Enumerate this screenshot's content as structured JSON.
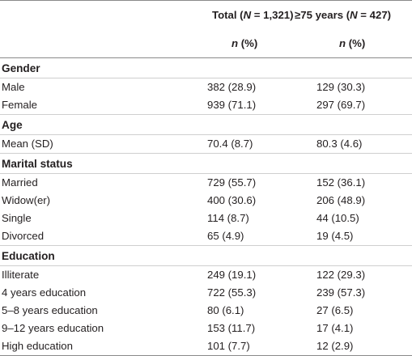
{
  "header": {
    "col1_prefix": "Total (",
    "col1_n": "N",
    "col1_suffix": " = 1,321)",
    "col2_prefix": "≥75 years (",
    "col2_n": "N",
    "col2_suffix": " = 427)",
    "sub_n": "n",
    "sub_pct": " (%)"
  },
  "sections": [
    {
      "title": "Gender",
      "rows": [
        {
          "label": "Male",
          "total": "382 (28.9)",
          "older": "129 (30.3)"
        },
        {
          "label": "Female",
          "total": "939 (71.1)",
          "older": "297 (69.7)"
        }
      ]
    },
    {
      "title": "Age",
      "rows": [
        {
          "label": "Mean (SD)",
          "total": "70.4 (8.7)",
          "older": "80.3 (4.6)"
        }
      ]
    },
    {
      "title": "Marital status",
      "rows": [
        {
          "label": "Married",
          "total": "729 (55.7)",
          "older": "152 (36.1)"
        },
        {
          "label": "Widow(er)",
          "total": "400 (30.6)",
          "older": "206 (48.9)"
        },
        {
          "label": "Single",
          "total": "114 (8.7)",
          "older": "44 (10.5)"
        },
        {
          "label": "Divorced",
          "total": "65 (4.9)",
          "older": "19 (4.5)"
        }
      ]
    },
    {
      "title": "Education",
      "rows": [
        {
          "label": "Illiterate",
          "total": "249 (19.1)",
          "older": "122 (29.3)"
        },
        {
          "label": "4 years education",
          "total": "722 (55.3)",
          "older": "239 (57.3)"
        },
        {
          "label": "5–8 years education",
          "total": "80 (6.1)",
          "older": "27 (6.5)"
        },
        {
          "label": "9–12 years education",
          "total": "153 (11.7)",
          "older": "17 (4.1)"
        },
        {
          "label": "High education",
          "total": "101 (7.7)",
          "older": "12 (2.9)"
        }
      ]
    }
  ]
}
